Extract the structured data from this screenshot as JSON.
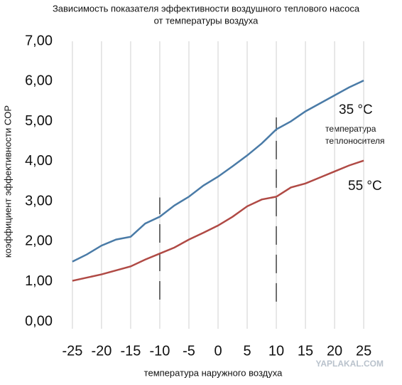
{
  "chart_data": {
    "type": "line",
    "title": [
      "Зависимость показателя эффективности воздушного теплового насоса",
      "от температуры воздуха"
    ],
    "x_label": "температура наружного воздуха",
    "y_label": "коэффициент эффективности COP",
    "x": [
      -25,
      -22.5,
      -20,
      -17.5,
      -15,
      -12.5,
      -10,
      -7.5,
      -5,
      -2.5,
      0,
      2.5,
      5,
      7.5,
      10,
      12.5,
      15,
      17.5,
      20,
      22.5,
      25
    ],
    "series": [
      {
        "name": "35 °C",
        "color": "#4a7ba7",
        "values": [
          1.5,
          1.68,
          1.9,
          2.05,
          2.12,
          2.45,
          2.62,
          2.9,
          3.12,
          3.4,
          3.62,
          3.88,
          4.15,
          4.45,
          4.8,
          5.0,
          5.25,
          5.45,
          5.65,
          5.85,
          6.02
        ]
      },
      {
        "name": "55 °C",
        "color": "#b04a45",
        "values": [
          1.02,
          1.1,
          1.18,
          1.28,
          1.38,
          1.55,
          1.7,
          1.85,
          2.05,
          2.22,
          2.4,
          2.62,
          2.88,
          3.05,
          3.12,
          3.35,
          3.45,
          3.6,
          3.75,
          3.9,
          4.02
        ]
      }
    ],
    "annotation": [
      "температура",
      "теплоносителя"
    ],
    "watermark": "YAPLAKAL.COM",
    "vlines": [
      {
        "x": -10,
        "ymin": 0.55,
        "ymax": 3.1
      },
      {
        "x": 10,
        "ymin": 0.5,
        "ymax": 5.1
      }
    ],
    "xlim": [
      -25.6,
      25.6
    ],
    "xticks": [
      -25,
      -20,
      -15,
      -10,
      -5,
      0,
      5,
      10,
      15,
      20,
      25
    ],
    "ylim": [
      0,
      7
    ],
    "yticks": [
      {
        "value": 0,
        "label": "0,00"
      },
      {
        "value": 1,
        "label": "1,00"
      },
      {
        "value": 2,
        "label": "2,00"
      },
      {
        "value": 3,
        "label": "3,00"
      },
      {
        "value": 4,
        "label": "4,00"
      },
      {
        "value": 5,
        "label": "5,00"
      },
      {
        "value": 6,
        "label": "6,00"
      },
      {
        "value": 7,
        "label": "7,00"
      }
    ],
    "grid": true
  }
}
